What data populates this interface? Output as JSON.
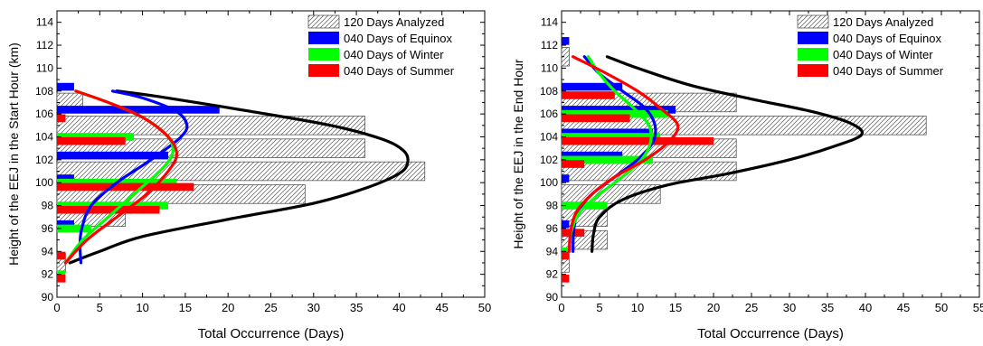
{
  "chart_data": [
    {
      "type": "bar",
      "orientation": "horizontal",
      "xlabel": "Total Occurrence (Days)",
      "ylabel": "Height of the EEJ in the Start Hour (km)",
      "xlim": [
        0,
        50
      ],
      "ylim": [
        90,
        115
      ],
      "xticks": [
        0,
        5,
        10,
        15,
        20,
        25,
        30,
        35,
        40,
        45,
        50
      ],
      "yticks": [
        90,
        92,
        94,
        96,
        98,
        100,
        102,
        104,
        106,
        108,
        110,
        112,
        114
      ],
      "legend_position": "top-right",
      "legend": [
        {
          "label": "120 Days Analyzed",
          "color": "#ffffff",
          "pattern": "hatch"
        },
        {
          "label": "040 Days of Equinox",
          "color": "#0000ff"
        },
        {
          "label": "040 Days of Winter",
          "color": "#00ff00"
        },
        {
          "label": "040 Days of Summer",
          "color": "#ff0000"
        }
      ],
      "bars": [
        {
          "group": "120 Days Analyzed",
          "color": "#ffffff",
          "height": [
            93,
            95,
            97,
            99,
            101,
            103,
            105,
            107,
            109
          ],
          "values": [
            1,
            0,
            8,
            29,
            43,
            36,
            36,
            3,
            0
          ]
        },
        {
          "group": "040 Days of Equinox",
          "color": "#0000ff",
          "height": [
            96,
            100,
            102,
            106,
            108
          ],
          "values": [
            2,
            2,
            13,
            19,
            2
          ]
        },
        {
          "group": "040 Days of Winter",
          "color": "#00ff00",
          "height": [
            92,
            96,
            98,
            100,
            104,
            106
          ],
          "values": [
            1,
            4,
            13,
            14,
            9,
            0
          ]
        },
        {
          "group": "040 Days of Summer",
          "color": "#ff0000",
          "height": [
            92,
            94,
            98,
            100,
            104,
            106
          ],
          "values": [
            1,
            1,
            12,
            16,
            8,
            1
          ]
        }
      ],
      "fits": [
        {
          "name": "120 Days Analyzed",
          "color": "#000000",
          "x": [
            1.5,
            5,
            10,
            20,
            30,
            36,
            40,
            41,
            40.5,
            38,
            32,
            22,
            12,
            7
          ],
          "y": [
            93,
            94,
            95.3,
            96.8,
            98.2,
            99.5,
            100.8,
            101.8,
            102.8,
            103.8,
            105,
            106.3,
            107.5,
            108
          ]
        },
        {
          "name": "040 Days of Equinox",
          "color": "#0000ff",
          "x": [
            2.8,
            2.7,
            2.9,
            4,
            7,
            10,
            12.5,
            14.5,
            15.2,
            14,
            10,
            6.5
          ],
          "y": [
            93,
            94.5,
            96,
            98,
            100,
            101.5,
            102.8,
            104,
            105,
            106.2,
            107.4,
            108
          ]
        },
        {
          "name": "040 Days of Winter",
          "color": "#00ff00",
          "x": [
            1,
            3,
            6,
            9,
            12,
            13.5,
            13,
            10,
            6,
            2.2
          ],
          "y": [
            93,
            95,
            97,
            99,
            101,
            102.5,
            104,
            105.7,
            107,
            108
          ]
        },
        {
          "name": "040 Days of Summer",
          "color": "#ff0000",
          "x": [
            1,
            3.5,
            7,
            10.5,
            13,
            14,
            13,
            10,
            6,
            2.2
          ],
          "y": [
            93,
            95,
            97,
            99,
            101,
            102.5,
            104,
            105.7,
            107,
            108
          ]
        }
      ]
    },
    {
      "type": "bar",
      "orientation": "horizontal",
      "xlabel": "Total Occurrence (Days)",
      "ylabel": "Height of the EEJ in the End Hour",
      "xlim": [
        0,
        55
      ],
      "ylim": [
        90,
        115
      ],
      "xticks": [
        0,
        5,
        10,
        15,
        20,
        25,
        30,
        35,
        40,
        45,
        50,
        55
      ],
      "yticks": [
        90,
        92,
        94,
        96,
        98,
        100,
        102,
        104,
        106,
        108,
        110,
        112,
        114
      ],
      "legend_position": "top-right",
      "legend": [
        {
          "label": "120 Days Analyzed",
          "color": "#ffffff",
          "pattern": "hatch"
        },
        {
          "label": "040 Days of Equinox",
          "color": "#0000ff"
        },
        {
          "label": "040 Days of Winter",
          "color": "#00ff00"
        },
        {
          "label": "040 Days of Summer",
          "color": "#ff0000"
        }
      ],
      "bars": [
        {
          "group": "120 Days Analyzed",
          "color": "#ffffff",
          "height": [
            93,
            95,
            97,
            99,
            101,
            103,
            105,
            107,
            109,
            111
          ],
          "values": [
            1,
            6,
            6,
            13,
            23,
            23,
            48,
            23,
            0,
            1
          ]
        },
        {
          "group": "040 Days of Equinox",
          "color": "#0000ff",
          "height": [
            96,
            100,
            102,
            104,
            106,
            108,
            112
          ],
          "values": [
            1,
            1,
            8,
            12,
            15,
            8,
            1
          ]
        },
        {
          "group": "040 Days of Winter",
          "color": "#00ff00",
          "height": [
            94,
            98,
            102,
            104,
            106
          ],
          "values": [
            1,
            6,
            12,
            13,
            14
          ]
        },
        {
          "group": "040 Days of Summer",
          "color": "#ff0000",
          "height": [
            92,
            94,
            96,
            102,
            104,
            106,
            108
          ],
          "values": [
            1,
            1,
            3,
            3,
            20,
            9,
            7
          ]
        }
      ],
      "fits": [
        {
          "name": "120 Days Analyzed",
          "color": "#000000",
          "x": [
            4,
            4.2,
            5,
            8,
            14,
            22,
            30,
            36,
            39.5,
            38,
            33,
            25,
            17,
            10,
            6
          ],
          "y": [
            94,
            95.5,
            97,
            98.5,
            99.8,
            100.8,
            102,
            103.2,
            104.2,
            105.2,
            106.2,
            107.3,
            108.5,
            110,
            111
          ]
        },
        {
          "name": "040 Days of Equinox",
          "color": "#0000ff",
          "x": [
            1.5,
            1.6,
            2.2,
            4,
            7,
            10,
            12,
            12.3,
            11,
            8,
            5,
            3
          ],
          "y": [
            94,
            95.8,
            97.5,
            99,
            100.5,
            102,
            103.5,
            105,
            106.5,
            108,
            109.5,
            111
          ]
        },
        {
          "name": "040 Days of Winter",
          "color": "#00ff00",
          "x": [
            1,
            1.3,
            2.5,
            5,
            8,
            10.5,
            11.7,
            11.5,
            9.5,
            7,
            5,
            3.5
          ],
          "y": [
            94,
            95.8,
            97.5,
            99,
            100.5,
            102,
            103.5,
            105,
            106.5,
            108,
            109.5,
            111
          ]
        },
        {
          "name": "040 Days of Summer",
          "color": "#ff0000",
          "x": [
            1,
            1.2,
            2,
            4,
            7,
            11,
            14,
            15.3,
            13,
            10,
            6,
            1.5
          ],
          "y": [
            94,
            95.8,
            97.5,
            99,
            100.5,
            102,
            103.5,
            105,
            106.5,
            108,
            109.5,
            111
          ]
        }
      ]
    }
  ]
}
